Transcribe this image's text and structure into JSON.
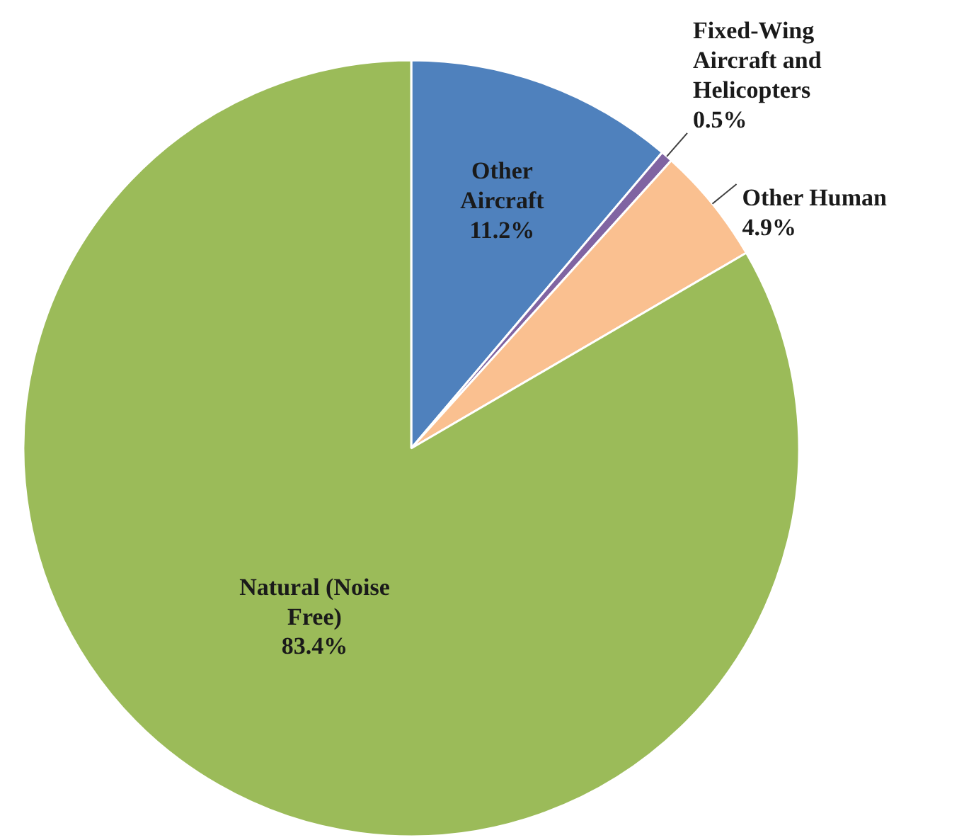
{
  "chart_data": {
    "type": "pie",
    "categories": [
      "Other Aircraft",
      "Fixed-Wing Aircraft and Helicopters",
      "Other Human",
      "Natural (Noise Free)"
    ],
    "values": [
      11.2,
      0.5,
      4.9,
      83.4
    ],
    "colors": [
      "#4f81bd",
      "#8064a2",
      "#fac090",
      "#9bbb59"
    ],
    "value_labels": [
      "11.2%",
      "0.5%",
      "4.9%",
      "83.4%"
    ]
  }
}
